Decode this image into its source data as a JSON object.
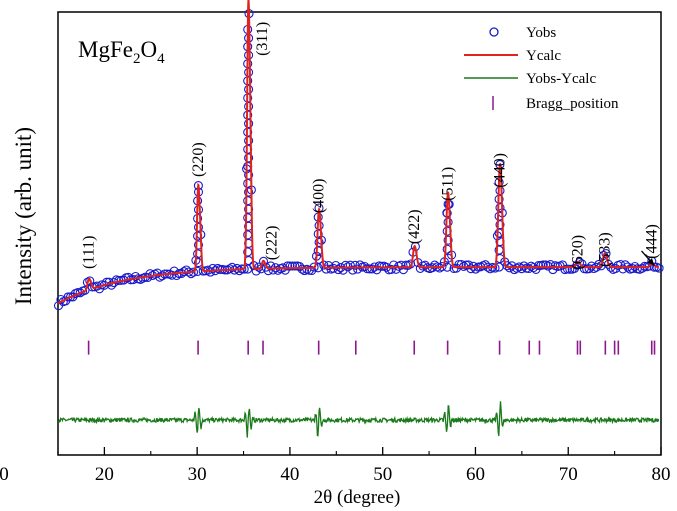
{
  "chart_data": {
    "type": "line",
    "title": "",
    "sample_label": {
      "main": "MgFe",
      "sub1": "2",
      "mid": "O",
      "sub2": "4"
    },
    "xlabel": "2θ (degree)",
    "ylabel": "Intensity (arb. unit)",
    "xlim": [
      15,
      80
    ],
    "ylim": [
      -1.1,
      2.2
    ],
    "x_ticks": [
      20,
      30,
      40,
      50,
      60,
      70,
      80
    ],
    "x_ticks_extra": [
      {
        "value": 10,
        "label": "0"
      }
    ],
    "y_ticks_shown": false,
    "legend": {
      "position": "top-right",
      "entries": [
        {
          "label": "Yobs",
          "marker": "circle",
          "color": "#1a1acc"
        },
        {
          "label": "Ycalc",
          "marker": "line",
          "color": "#e0231c"
        },
        {
          "label": "Yobs-Ycalc",
          "marker": "line",
          "color": "#1a7a1a"
        },
        {
          "label": "Bragg_position",
          "marker": "tick",
          "color": "#8b1a8b"
        }
      ]
    },
    "colors": {
      "yobs": "#1a1acc",
      "ycalc": "#e0231c",
      "diff": "#1a7a1a",
      "bragg": "#8b1a8b",
      "axis": "#000000"
    },
    "background": {
      "x0": 15,
      "y_start": 0.03,
      "y_plateau": 0.3,
      "rate": 0.14
    },
    "peaks": [
      {
        "hkl": "(111)",
        "two_theta": 18.3,
        "height": 0.07,
        "width": 0.14
      },
      {
        "hkl": "(220)",
        "two_theta": 30.1,
        "height": 0.58,
        "width": 0.12
      },
      {
        "hkl": "(311)",
        "two_theta": 35.5,
        "height": 1.75,
        "width": 0.13
      },
      {
        "hkl": "(222)",
        "two_theta": 37.1,
        "height": 0.05,
        "width": 0.14
      },
      {
        "hkl": "(400)",
        "two_theta": 43.1,
        "height": 0.37,
        "width": 0.14
      },
      {
        "hkl": "(422)",
        "two_theta": 53.4,
        "height": 0.13,
        "width": 0.15
      },
      {
        "hkl": "(511)",
        "two_theta": 57.0,
        "height": 0.46,
        "width": 0.15
      },
      {
        "hkl": "(440)",
        "two_theta": 62.6,
        "height": 0.62,
        "width": 0.16
      },
      {
        "hkl": "(620)",
        "two_theta": 71.0,
        "height": 0.03,
        "width": 0.18
      },
      {
        "hkl": "(533)",
        "two_theta": 73.9,
        "height": 0.08,
        "width": 0.18
      },
      {
        "hkl": "(444)",
        "two_theta": 79.0,
        "height": 0.02,
        "width": 0.18
      }
    ],
    "peak_labels": [
      {
        "text": "(111)",
        "x": 18.3,
        "y": 0.41
      },
      {
        "text": "(220)",
        "x": 30.1,
        "y": 1.1
      },
      {
        "text": "(311)",
        "x": 37.0,
        "y": 2.0
      },
      {
        "text": "(222)",
        "x": 38.0,
        "y": 0.48
      },
      {
        "text": "(400)",
        "x": 43.1,
        "y": 0.83
      },
      {
        "text": "(422)",
        "x": 53.4,
        "y": 0.6
      },
      {
        "text": "(511)",
        "x": 57.0,
        "y": 0.92
      },
      {
        "text": "(440)",
        "x": 62.6,
        "y": 1.02
      },
      {
        "text": "(620)",
        "x": 71.0,
        "y": 0.41
      },
      {
        "text": "(533)",
        "x": 73.9,
        "y": 0.43
      },
      {
        "text": "(444)",
        "x": 79.0,
        "y": 0.49
      }
    ],
    "arrow_444": {
      "from": [
        77.9,
        0.42
      ],
      "to": [
        79.3,
        0.31
      ]
    },
    "bragg_positions": [
      18.3,
      30.1,
      35.5,
      37.1,
      43.1,
      47.1,
      53.4,
      57.0,
      62.6,
      65.8,
      66.9,
      71.0,
      71.3,
      74.0,
      75.0,
      75.4,
      79.0,
      79.3
    ],
    "bragg_y": -0.3,
    "difference": {
      "baseline": -0.84,
      "spikes": [
        30.1,
        35.5,
        43.1,
        57.0,
        62.6
      ],
      "spike_amp": 0.12
    }
  }
}
